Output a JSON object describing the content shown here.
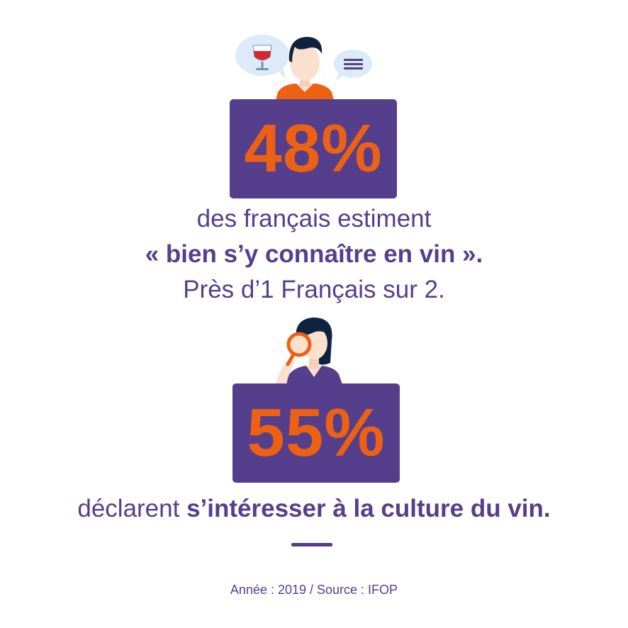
{
  "colors": {
    "primary": "#553f8c",
    "accent": "#ec6113",
    "bubble": "#dcebf7"
  },
  "stat1": {
    "value": "48%",
    "line1": "des français estiment",
    "line2": "« bien s’y connaître en vin ».",
    "line3": "Près d’1 Français sur 2.",
    "icons": [
      "person-icon",
      "wine-glass-icon",
      "speech-bubble-icon"
    ]
  },
  "stat2": {
    "value": "55%",
    "text_regular": "déclarent ",
    "text_bold": "s’intéresser à la culture du vin.",
    "icons": [
      "woman-icon",
      "magnifying-glass-icon"
    ]
  },
  "footer": {
    "source": "Année : 2019 / Source : IFOP"
  }
}
